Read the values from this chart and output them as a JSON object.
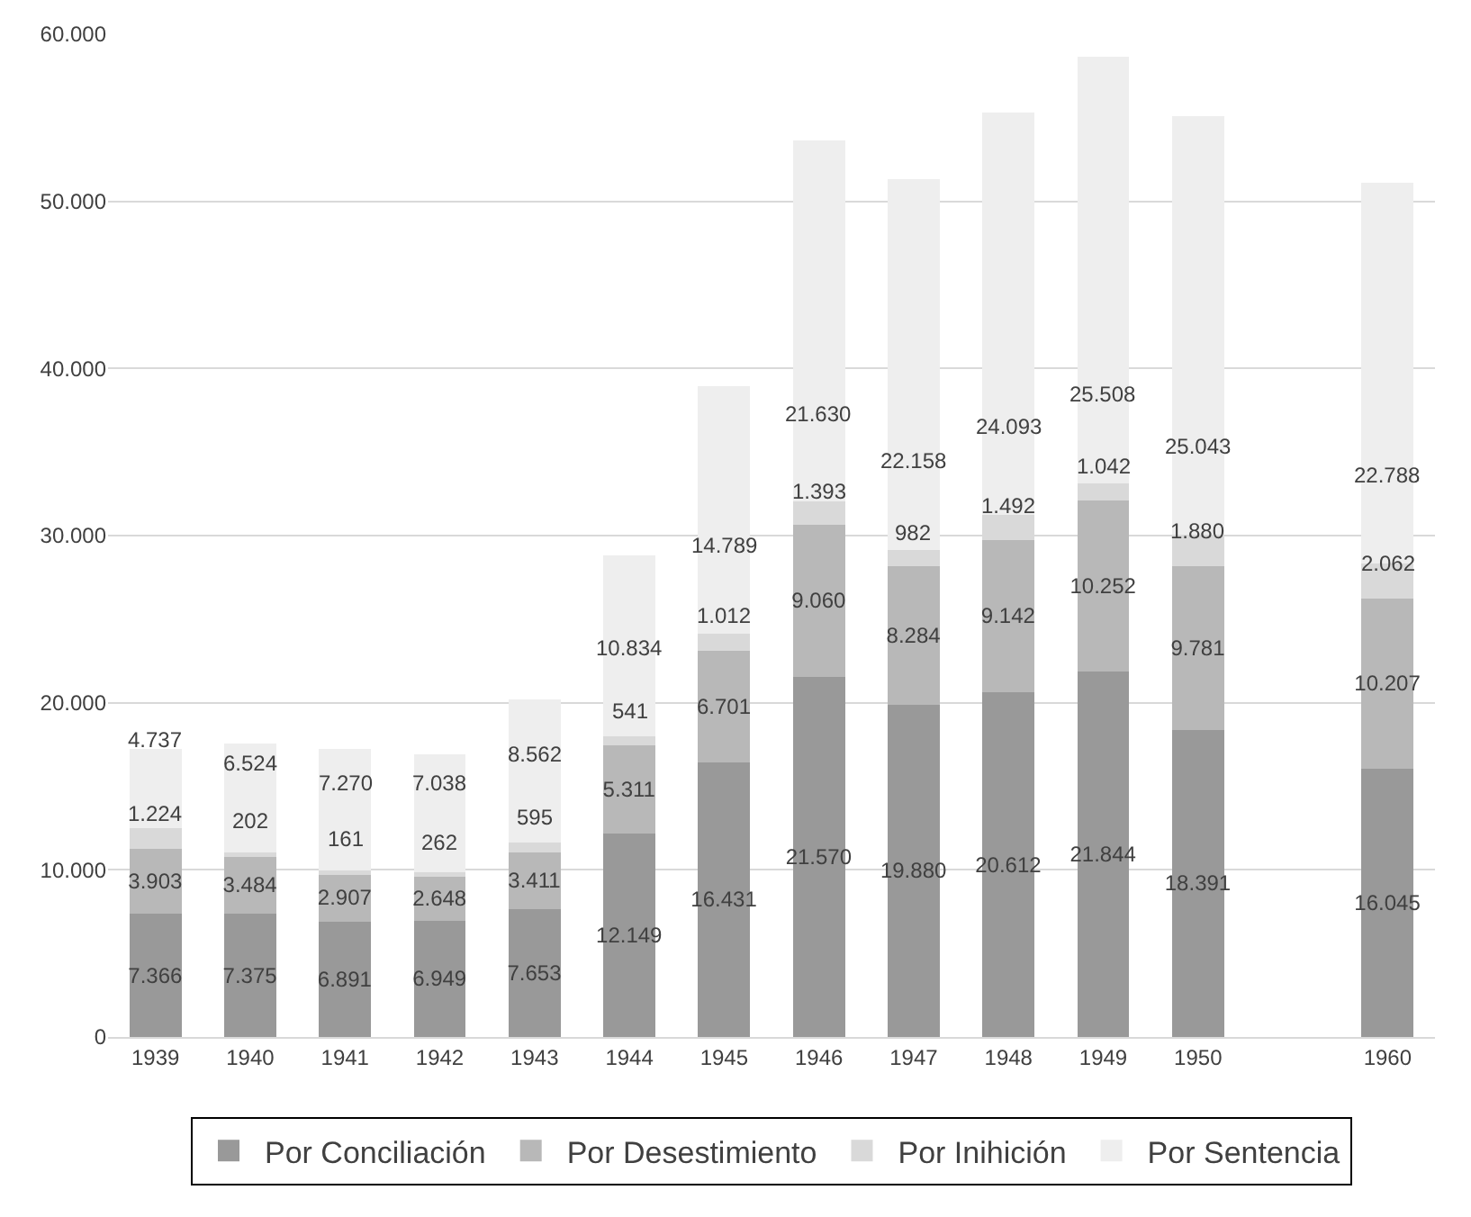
{
  "chart_data": {
    "type": "bar",
    "stacked": true,
    "grid": "y",
    "legend": "bottom",
    "categories": [
      "1939",
      "1940",
      "1941",
      "1942",
      "1943",
      "1944",
      "1945",
      "1946",
      "1947",
      "1948",
      "1949",
      "1950",
      null,
      "1960"
    ],
    "series": [
      {
        "name": "Por Conciliación",
        "color": "#999999",
        "values": [
          7366,
          7375,
          6891,
          6949,
          7653,
          12149,
          16431,
          21570,
          19880,
          20612,
          21844,
          18391,
          null,
          16045
        ],
        "value_labels": [
          "7.366",
          "7.375",
          "6.891",
          "6.949",
          "7.653",
          "12.149",
          "16.431",
          "21.570",
          "19.880",
          "20.612",
          "21.844",
          "18.391",
          null,
          "16.045"
        ]
      },
      {
        "name": "Por Desestimiento",
        "color": "#b8b8b8",
        "values": [
          3903,
          3484,
          2907,
          2648,
          3411,
          5311,
          6701,
          9060,
          8284,
          9142,
          10252,
          9781,
          null,
          10207
        ],
        "value_labels": [
          "3.903",
          "3.484",
          "2.907",
          "2.648",
          "3.411",
          "5.311",
          "6.701",
          "9.060",
          "8.284",
          "9.142",
          "10.252",
          "9.781",
          null,
          "10.207"
        ]
      },
      {
        "name": "Por Inihición",
        "color": "#d9d9d9",
        "values": [
          1224,
          202,
          161,
          262,
          595,
          541,
          1012,
          1393,
          982,
          1492,
          1042,
          1880,
          null,
          2062
        ],
        "value_labels": [
          "1.224",
          "202",
          "161",
          "262",
          "595",
          "541",
          "1.012",
          "1.393",
          "982",
          "1.492",
          "1.042",
          "1.880",
          null,
          "2.062"
        ]
      },
      {
        "name": "Por Sentencia",
        "color": "#eeeeee",
        "values": [
          4737,
          6524,
          7270,
          7038,
          8562,
          10834,
          14789,
          21630,
          22158,
          24093,
          25508,
          25043,
          null,
          22788
        ],
        "value_labels": [
          "4.737",
          "6.524",
          "7.270",
          "7.038",
          "8.562",
          "10.834",
          "14.789",
          "21.630",
          "22.158",
          "24.093",
          "25.508",
          "25.043",
          null,
          "22.788"
        ]
      }
    ],
    "ylim": [
      0,
      60000
    ],
    "yticks": [
      {
        "value": 0,
        "label": "0"
      },
      {
        "value": 10000,
        "label": "10.000"
      },
      {
        "value": 20000,
        "label": "20.000"
      },
      {
        "value": 30000,
        "label": "30.000"
      },
      {
        "value": 40000,
        "label": "40.000"
      },
      {
        "value": 50000,
        "label": "50.000"
      },
      {
        "value": 60000,
        "label": "60.000"
      }
    ]
  }
}
